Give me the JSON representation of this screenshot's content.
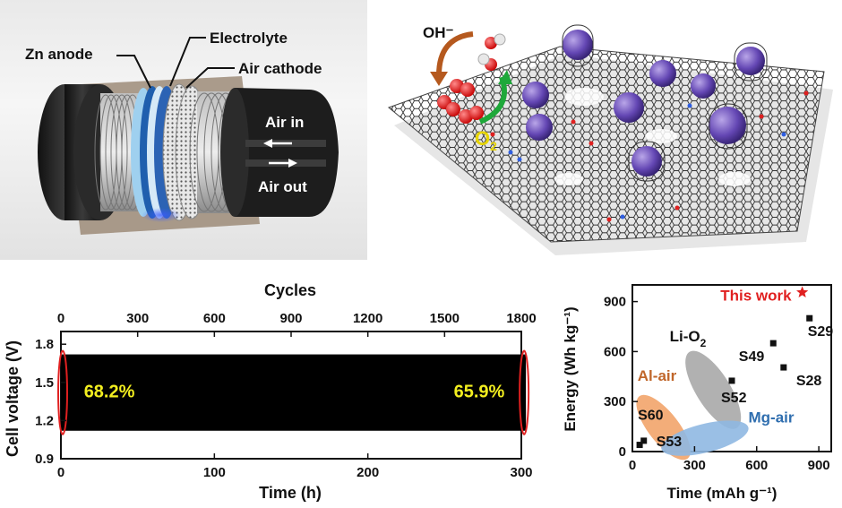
{
  "panel_a": {
    "labels": {
      "zn_anode": "Zn anode",
      "electrolyte": "Electrolyte",
      "air_cathode": "Air cathode",
      "air_in": "Air in",
      "air_out": "Air out"
    }
  },
  "panel_b": {
    "labels": {
      "hydroxide": "OH⁻",
      "oxygen": "O",
      "oxygen_sub": "2"
    }
  },
  "chart_data": [
    {
      "type": "area",
      "x_top": {
        "label": "Cycles",
        "ticks": [
          "0",
          "300",
          "600",
          "900",
          "1200",
          "1500",
          "1800"
        ],
        "range": [
          0,
          1800
        ]
      },
      "x_bottom": {
        "label": "Time (h)",
        "ticks": [
          "0",
          "100",
          "200",
          "300"
        ],
        "range": [
          0,
          300
        ]
      },
      "y": {
        "label": "Cell voltage (V)",
        "ticks": [
          "0.9",
          "1.2",
          "1.5",
          "1.8"
        ],
        "range": [
          0.9,
          1.9
        ]
      },
      "series": [
        {
          "x_start": 0,
          "x_end": 303,
          "y_low": 1.12,
          "y_high": 1.72,
          "color": "#000000"
        }
      ],
      "annotations": [
        {
          "text": "68.2%",
          "x": 15,
          "y": 1.43,
          "color": "#f2ee1f"
        },
        {
          "text": "65.9%",
          "x": 256,
          "y": 1.43,
          "color": "#f2ee1f"
        }
      ],
      "highlight_color": "#e02020"
    },
    {
      "type": "scatter",
      "x": {
        "label": "Time (mAh g⁻¹)",
        "ticks": [
          "0",
          "300",
          "600",
          "900"
        ],
        "range": [
          0,
          960
        ]
      },
      "y": {
        "label": "Energy (Wh kg⁻¹)",
        "ticks": [
          "0",
          "300",
          "600",
          "900"
        ],
        "range": [
          0,
          1000
        ]
      },
      "points": [
        {
          "label": "S29",
          "x": 855,
          "y": 800
        },
        {
          "label": "S49",
          "x": 680,
          "y": 650
        },
        {
          "label": "S28",
          "x": 730,
          "y": 505
        },
        {
          "label": "S52",
          "x": 480,
          "y": 425
        },
        {
          "label": "S60",
          "x": 35,
          "y": 40
        },
        {
          "label": "S53",
          "x": 55,
          "y": 65
        }
      ],
      "this_work": {
        "label": "This work",
        "x": 820,
        "y": 955,
        "color": "#e02020"
      },
      "regions": [
        {
          "label": "Li-O",
          "label_sub": "2",
          "color": "#a8a8a8",
          "text_color": "#111111"
        },
        {
          "label": "Al-air",
          "color": "#f2a46a",
          "text_color": "#c0662a"
        },
        {
          "label": "Mg-air",
          "color": "#8fb8e2",
          "text_color": "#2f6eaf"
        }
      ]
    }
  ]
}
